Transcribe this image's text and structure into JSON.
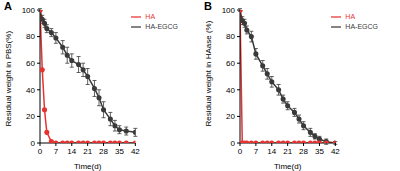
{
  "chart_data": [
    {
      "type": "line",
      "title": "A",
      "x_label": "Time(d)",
      "y_label": "Residual weight in PBS(%)",
      "x": [
        0,
        1,
        2,
        3,
        5,
        7,
        10,
        12,
        14,
        17,
        19,
        21,
        24,
        26,
        28,
        31,
        33,
        35,
        38,
        42
      ],
      "xlim": [
        0,
        42
      ],
      "xticks": [
        0,
        7,
        14,
        21,
        28,
        35,
        42
      ],
      "ylim": [
        0,
        100
      ],
      "yticks": [
        0,
        20,
        40,
        60,
        80,
        100
      ],
      "legend": "top-right",
      "series": [
        {
          "name": "HA-EGCG",
          "color": "#3a3a3a",
          "marker": "circle",
          "values": [
            100,
            93,
            90,
            86,
            83,
            79,
            72,
            66,
            62,
            59,
            55,
            50,
            41,
            34,
            25,
            18,
            13,
            10,
            9,
            8
          ],
          "errors": [
            1,
            3,
            3,
            3,
            3,
            4,
            5,
            6,
            5,
            6,
            5,
            6,
            6,
            6,
            6,
            5,
            4,
            3,
            3,
            3
          ]
        },
        {
          "name": "HA",
          "color": "#e8322f",
          "marker": "circle",
          "values": [
            100,
            55,
            25,
            8,
            1,
            0,
            0,
            0,
            0,
            0,
            0,
            0,
            0,
            0,
            0,
            0,
            0,
            0,
            0,
            0
          ]
        }
      ]
    },
    {
      "type": "line",
      "title": "B",
      "x_label": "Time(d)",
      "y_label": "Residual weight in HAase (%)",
      "x": [
        0,
        1,
        2,
        3,
        5,
        7,
        10,
        12,
        14,
        17,
        19,
        21,
        24,
        26,
        28,
        31,
        33,
        35,
        38,
        42
      ],
      "xlim": [
        0,
        42
      ],
      "xticks": [
        0,
        7,
        14,
        21,
        28,
        35,
        42
      ],
      "ylim": [
        0,
        100
      ],
      "yticks": [
        0,
        20,
        40,
        60,
        80,
        100
      ],
      "legend": "top-right",
      "series": [
        {
          "name": "HA-EGCG",
          "color": "#3a3a3a",
          "marker": "circle",
          "values": [
            100,
            92,
            90,
            85,
            80,
            67,
            58,
            52,
            46,
            40,
            33,
            28,
            23,
            18,
            13,
            8,
            5,
            3,
            1,
            0
          ],
          "errors": [
            1,
            3,
            3,
            3,
            4,
            4,
            4,
            4,
            4,
            4,
            3,
            3,
            3,
            3,
            3,
            3,
            2,
            2,
            2,
            1
          ]
        },
        {
          "name": "HA",
          "color": "#e8322f",
          "marker": "circle",
          "values": [
            100,
            0,
            0,
            0,
            0,
            0,
            0,
            0,
            0,
            0,
            0,
            0,
            0,
            0,
            0,
            0,
            0,
            0,
            0,
            0
          ]
        }
      ]
    }
  ]
}
